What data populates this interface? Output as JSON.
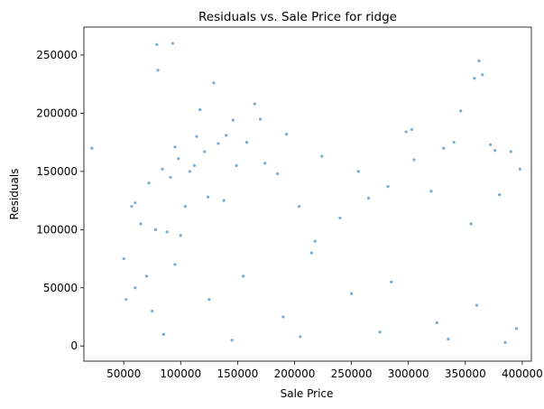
{
  "chart_data": {
    "type": "scatter",
    "title": "Residuals vs. Sale Price for ridge",
    "xlabel": "Sale Price",
    "ylabel": "Residuals",
    "xlim": [
      15000,
      408000
    ],
    "ylim": [
      -13000,
      274000
    ],
    "x_ticks": [
      50000,
      100000,
      150000,
      200000,
      250000,
      300000,
      350000,
      400000
    ],
    "y_ticks": [
      0,
      50000,
      100000,
      150000,
      200000,
      250000
    ],
    "grid": false,
    "point_color": "#1f77b4",
    "point_alpha": 0.6,
    "series": [
      {
        "x": [
          22000,
          50000,
          52000,
          57000,
          60000,
          65000,
          70000,
          72000,
          78000,
          79000,
          80000,
          84000,
          88000,
          91000,
          93000,
          95000,
          98000,
          100000,
          104000,
          108000,
          112000,
          114000,
          117000,
          121000,
          124000,
          129000,
          133000,
          138000,
          140000,
          146000,
          149000,
          158000,
          165000,
          170000,
          174000,
          185000,
          193000,
          204000,
          218000,
          224000,
          240000,
          256000,
          265000,
          282000,
          298000,
          303000,
          305000,
          320000,
          331000,
          340000,
          346000,
          355000,
          358000,
          362000,
          365000,
          372000,
          376000,
          380000,
          390000,
          398000,
          60000,
          75000,
          95000,
          125000,
          155000,
          190000,
          215000,
          250000,
          285000,
          325000,
          360000,
          395000,
          85000,
          145000,
          205000,
          275000,
          335000,
          385000
        ],
        "y": [
          170000,
          75000,
          40000,
          120000,
          123000,
          105000,
          60000,
          140000,
          100000,
          259000,
          237000,
          152000,
          98000,
          145000,
          260000,
          171000,
          161000,
          95000,
          120000,
          150000,
          155000,
          180000,
          203000,
          167000,
          128000,
          226000,
          174000,
          125000,
          181000,
          194000,
          155000,
          175000,
          208000,
          195000,
          157000,
          148000,
          182000,
          120000,
          90000,
          163000,
          110000,
          150000,
          127000,
          137000,
          184000,
          186000,
          160000,
          133000,
          170000,
          175000,
          202000,
          105000,
          230000,
          245000,
          233000,
          173000,
          168000,
          130000,
          167000,
          152000,
          50000,
          30000,
          70000,
          40000,
          60000,
          25000,
          80000,
          45000,
          55000,
          20000,
          35000,
          15000,
          10000,
          5000,
          8000,
          12000,
          6000,
          3000
        ]
      }
    ]
  }
}
